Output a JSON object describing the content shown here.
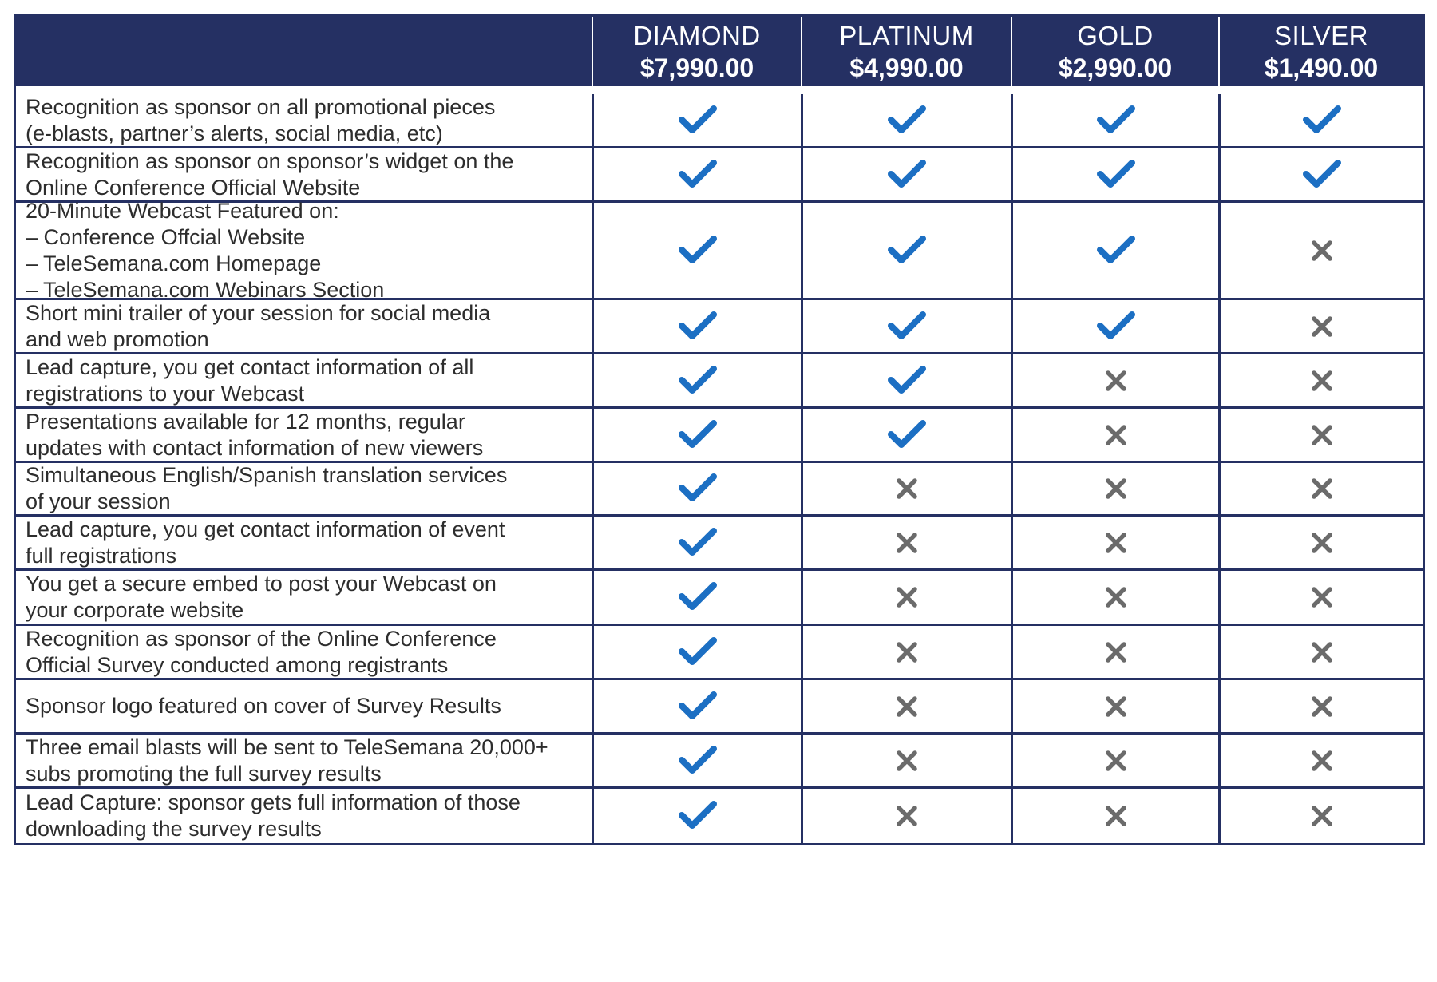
{
  "header": {
    "tiers": [
      {
        "name": "DIAMOND",
        "price": "$7,990.00"
      },
      {
        "name": "PLATINUM",
        "price": "$4,990.00"
      },
      {
        "name": "GOLD",
        "price": "$2,990.00"
      },
      {
        "name": "SILVER",
        "price": "$1,490.00"
      }
    ]
  },
  "colors": {
    "header_bg": "#253063",
    "check": "#1c6fc3",
    "cross": "#6b6b6b"
  },
  "icons": {
    "included": "check-icon",
    "excluded": "cross-icon"
  },
  "rows": [
    {
      "feature": "Recognition as sponsor on all promotional pieces\n(e-blasts, partner’s alerts, social media, etc)",
      "included": [
        true,
        true,
        true,
        true
      ]
    },
    {
      "feature": "Recognition as sponsor on sponsor’s widget on the\nOnline Conference Official Website",
      "included": [
        true,
        true,
        true,
        true
      ]
    },
    {
      "feature": "20-Minute Webcast Featured on:\n– Conference Offcial Website\n– TeleSemana.com Homepage\n– TeleSemana.com Webinars Section",
      "included": [
        true,
        true,
        true,
        false
      ]
    },
    {
      "feature": "Short mini trailer of your session for social media\nand web promotion",
      "included": [
        true,
        true,
        true,
        false
      ]
    },
    {
      "feature": "Lead capture, you get contact information of all\nregistrations to your Webcast",
      "included": [
        true,
        true,
        false,
        false
      ]
    },
    {
      "feature": "Presentations available for 12 months, regular\nupdates with contact information of new viewers",
      "included": [
        true,
        true,
        false,
        false
      ]
    },
    {
      "feature": "Simultaneous English/Spanish translation services\nof your session",
      "included": [
        true,
        false,
        false,
        false
      ]
    },
    {
      "feature": "Lead capture, you get contact information of event\nfull registrations",
      "included": [
        true,
        false,
        false,
        false
      ]
    },
    {
      "feature": "You get a secure embed to post your Webcast on\nyour corporate website",
      "included": [
        true,
        false,
        false,
        false
      ]
    },
    {
      "feature": "Recognition as sponsor of the Online Conference\n Official Survey conducted among registrants",
      "included": [
        true,
        false,
        false,
        false
      ]
    },
    {
      "feature": "Sponsor logo featured on cover of Survey Results",
      "included": [
        true,
        false,
        false,
        false
      ]
    },
    {
      "feature": "Three email blasts will be sent to TeleSemana 20,000+\nsubs promoting the full survey results",
      "included": [
        true,
        false,
        false,
        false
      ]
    },
    {
      "feature": "Lead Capture: sponsor gets full information of those\ndownloading the survey results",
      "included": [
        true,
        false,
        false,
        false
      ]
    }
  ]
}
